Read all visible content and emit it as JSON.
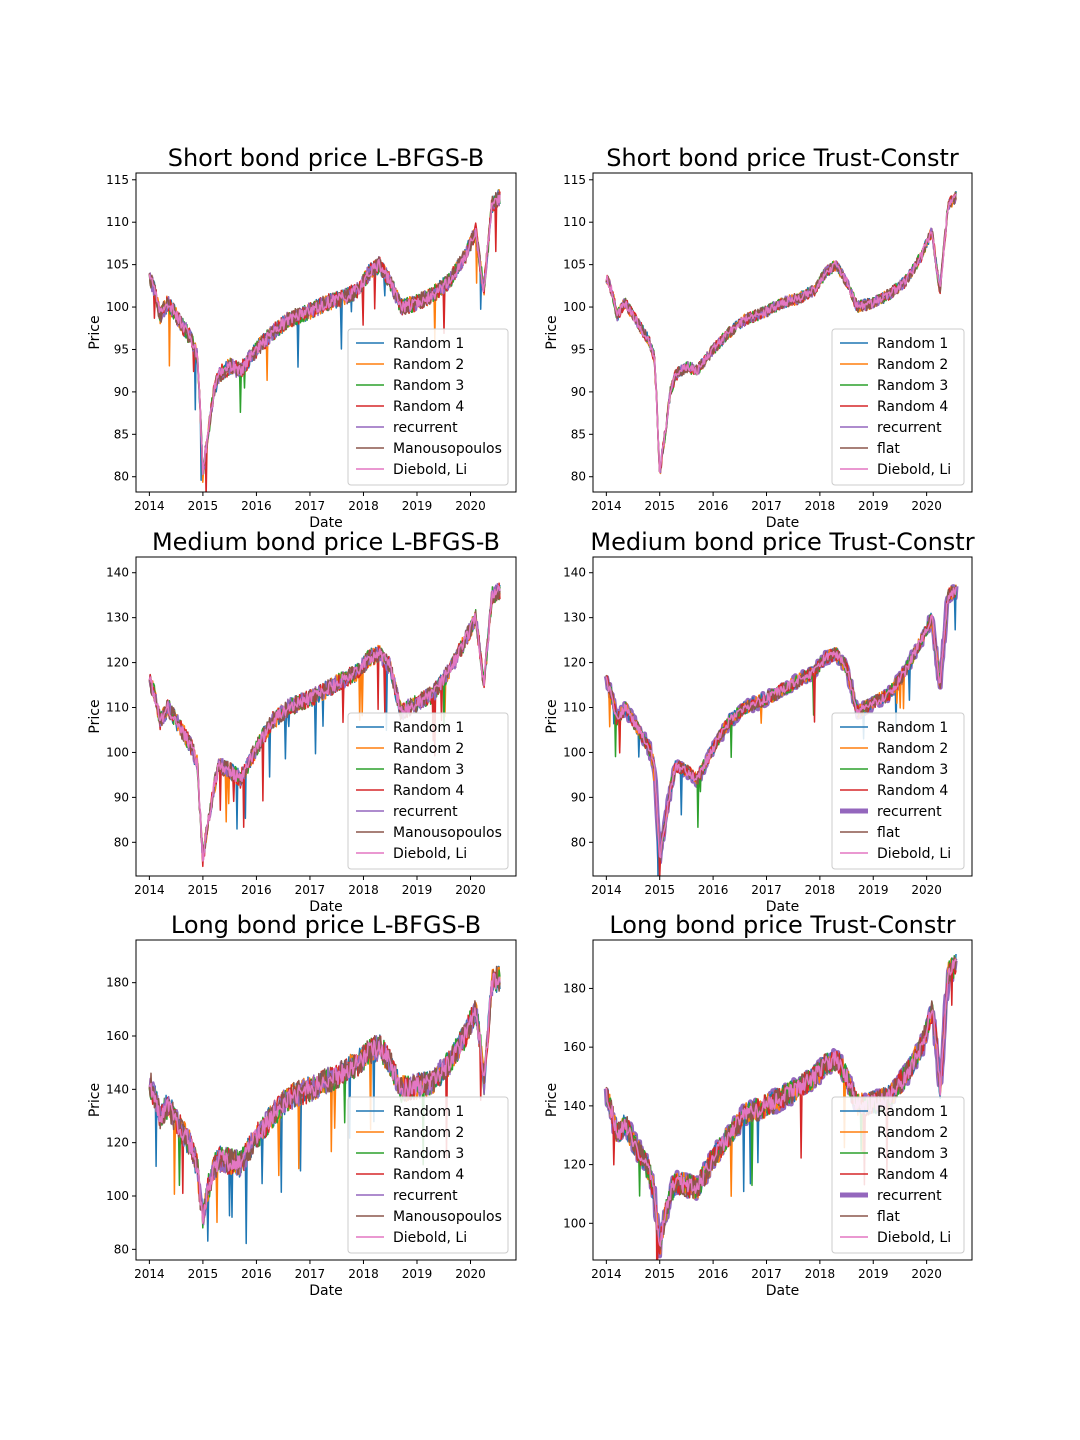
{
  "figure": {
    "legend_placement": "lower-right",
    "colors": {
      "Random 1": "#1f77b4",
      "Random 2": "#ff7f0e",
      "Random 3": "#2ca02c",
      "Random 4": "#d62728",
      "recurrent": "#9467bd",
      "Manousopoulos": "#8c564b",
      "flat": "#8c564b",
      "Diebold, Li": "#e377c2"
    }
  },
  "chart_data": [
    {
      "type": "line",
      "title": "Short bond price L-BFGS-B",
      "xlabel": "Date",
      "ylabel": "Price",
      "xlim": [
        2013.75,
        2020.85
      ],
      "ylim": [
        78.2,
        115.8
      ],
      "xticks": [
        "2014",
        "2015",
        "2016",
        "2017",
        "2018",
        "2019",
        "2020"
      ],
      "yticks": [
        "80",
        "85",
        "90",
        "95",
        "100",
        "105",
        "110",
        "115"
      ],
      "legend": [
        "Random 1",
        "Random 2",
        "Random 3",
        "Random 4",
        "recurrent",
        "Manousopoulos",
        "Diebold, Li"
      ],
      "grid": false,
      "x": [
        2014.0,
        2014.1,
        2014.2,
        2014.35,
        2014.5,
        2014.65,
        2014.8,
        2014.9,
        2014.95,
        2015.0,
        2015.05,
        2015.1,
        2015.2,
        2015.3,
        2015.5,
        2015.7,
        2016.0,
        2016.3,
        2016.6,
        2017.0,
        2017.3,
        2017.6,
        2017.9,
        2018.1,
        2018.3,
        2018.5,
        2018.7,
        2019.0,
        2019.3,
        2019.6,
        2019.9,
        2020.1,
        2020.2,
        2020.25,
        2020.4,
        2020.55
      ],
      "y": [
        103.5,
        102.0,
        99.0,
        100.5,
        99.0,
        97.5,
        96.0,
        94.0,
        88.0,
        80.0,
        83.0,
        85.0,
        90.0,
        92.0,
        93.0,
        92.5,
        95.0,
        97.0,
        98.5,
        99.5,
        100.5,
        101.0,
        102.0,
        104.0,
        105.0,
        103.0,
        100.0,
        100.5,
        101.5,
        103.0,
        106.0,
        109.0,
        104.0,
        102.0,
        112.0,
        113.0
      ],
      "noise": 1.0,
      "variant": "lbfgs"
    },
    {
      "type": "line",
      "title": "Short bond price Trust-Constr",
      "xlabel": "Date",
      "ylabel": "Price",
      "xlim": [
        2013.75,
        2020.85
      ],
      "ylim": [
        78.2,
        115.8
      ],
      "xticks": [
        "2014",
        "2015",
        "2016",
        "2017",
        "2018",
        "2019",
        "2020"
      ],
      "yticks": [
        "80",
        "85",
        "90",
        "95",
        "100",
        "105",
        "110",
        "115"
      ],
      "legend": [
        "Random 1",
        "Random 2",
        "Random 3",
        "Random 4",
        "recurrent",
        "flat",
        "Diebold, Li"
      ],
      "grid": false,
      "x": [
        2014.0,
        2014.1,
        2014.2,
        2014.35,
        2014.5,
        2014.65,
        2014.8,
        2014.9,
        2014.95,
        2015.0,
        2015.05,
        2015.1,
        2015.2,
        2015.3,
        2015.5,
        2015.7,
        2016.0,
        2016.3,
        2016.6,
        2017.0,
        2017.3,
        2017.6,
        2017.9,
        2018.1,
        2018.3,
        2018.5,
        2018.7,
        2019.0,
        2019.3,
        2019.6,
        2019.9,
        2020.1,
        2020.2,
        2020.25,
        2020.4,
        2020.55
      ],
      "y": [
        103.5,
        102.0,
        99.0,
        100.5,
        99.0,
        97.5,
        96.0,
        94.0,
        88.0,
        80.0,
        83.0,
        85.0,
        90.0,
        92.0,
        93.0,
        92.5,
        95.0,
        97.0,
        98.5,
        99.5,
        100.5,
        101.0,
        102.0,
        104.0,
        105.0,
        103.0,
        100.0,
        100.5,
        101.5,
        103.0,
        106.0,
        109.0,
        104.0,
        102.0,
        112.0,
        113.0
      ],
      "noise": 0.7,
      "variant": "trust_thin"
    },
    {
      "type": "line",
      "title": "Medium bond price L-BFGS-B",
      "xlabel": "Date",
      "ylabel": "Price",
      "xlim": [
        2013.75,
        2020.85
      ],
      "ylim": [
        72.5,
        143.5
      ],
      "xticks": [
        "2014",
        "2015",
        "2016",
        "2017",
        "2018",
        "2019",
        "2020"
      ],
      "yticks": [
        "80",
        "90",
        "100",
        "110",
        "120",
        "130",
        "140"
      ],
      "legend": [
        "Random 1",
        "Random 2",
        "Random 3",
        "Random 4",
        "recurrent",
        "Manousopoulos",
        "Diebold, Li"
      ],
      "grid": false,
      "x": [
        2014.0,
        2014.1,
        2014.2,
        2014.35,
        2014.5,
        2014.65,
        2014.8,
        2014.9,
        2014.95,
        2015.0,
        2015.05,
        2015.1,
        2015.2,
        2015.3,
        2015.5,
        2015.7,
        2016.0,
        2016.3,
        2016.6,
        2017.0,
        2017.3,
        2017.6,
        2017.9,
        2018.1,
        2018.3,
        2018.5,
        2018.7,
        2019.0,
        2019.3,
        2019.6,
        2019.9,
        2020.1,
        2020.2,
        2020.25,
        2020.4,
        2020.55
      ],
      "y": [
        116.0,
        113.0,
        107.0,
        110.0,
        107.0,
        104.0,
        101.0,
        97.0,
        86.0,
        76.0,
        81.0,
        84.0,
        92.0,
        97.0,
        96.0,
        94.0,
        101.0,
        107.0,
        110.0,
        112.0,
        114.0,
        116.0,
        118.0,
        121.0,
        122.0,
        119.0,
        109.0,
        111.0,
        113.0,
        118.0,
        125.0,
        130.0,
        120.0,
        115.0,
        135.0,
        136.0
      ],
      "noise": 2.0,
      "variant": "lbfgs"
    },
    {
      "type": "line",
      "title": "Medium bond price Trust-Constr",
      "xlabel": "Date",
      "ylabel": "Price",
      "xlim": [
        2013.75,
        2020.85
      ],
      "ylim": [
        72.5,
        143.5
      ],
      "xticks": [
        "2014",
        "2015",
        "2016",
        "2017",
        "2018",
        "2019",
        "2020"
      ],
      "yticks": [
        "80",
        "90",
        "100",
        "110",
        "120",
        "130",
        "140"
      ],
      "legend": [
        "Random 1",
        "Random 2",
        "Random 3",
        "Random 4",
        "recurrent",
        "flat",
        "Diebold, Li"
      ],
      "grid": false,
      "x": [
        2014.0,
        2014.1,
        2014.2,
        2014.35,
        2014.5,
        2014.65,
        2014.8,
        2014.9,
        2014.95,
        2015.0,
        2015.05,
        2015.1,
        2015.2,
        2015.3,
        2015.5,
        2015.7,
        2016.0,
        2016.3,
        2016.6,
        2017.0,
        2017.3,
        2017.6,
        2017.9,
        2018.1,
        2018.3,
        2018.5,
        2018.7,
        2019.0,
        2019.3,
        2019.6,
        2019.9,
        2020.1,
        2020.2,
        2020.25,
        2020.4,
        2020.55
      ],
      "y": [
        116.0,
        113.0,
        107.0,
        110.0,
        107.0,
        104.0,
        101.0,
        97.0,
        86.0,
        76.0,
        81.0,
        84.0,
        92.0,
        97.0,
        96.0,
        94.0,
        101.0,
        107.0,
        110.0,
        112.0,
        114.0,
        116.0,
        118.0,
        121.0,
        122.0,
        119.0,
        109.0,
        111.0,
        113.0,
        118.0,
        125.0,
        130.0,
        120.0,
        115.0,
        135.0,
        136.0
      ],
      "noise": 1.5,
      "variant": "trust_thick"
    },
    {
      "type": "line",
      "title": "Long bond price L-BFGS-B",
      "xlabel": "Date",
      "ylabel": "Price",
      "xlim": [
        2013.75,
        2020.85
      ],
      "ylim": [
        76.0,
        196.0
      ],
      "xticks": [
        "2014",
        "2015",
        "2016",
        "2017",
        "2018",
        "2019",
        "2020"
      ],
      "yticks": [
        "80",
        "100",
        "120",
        "140",
        "160",
        "180"
      ],
      "legend": [
        "Random 1",
        "Random 2",
        "Random 3",
        "Random 4",
        "recurrent",
        "Manousopoulos",
        "Diebold, Li"
      ],
      "grid": false,
      "x": [
        2014.0,
        2014.1,
        2014.2,
        2014.35,
        2014.5,
        2014.65,
        2014.8,
        2014.9,
        2014.95,
        2015.0,
        2015.05,
        2015.1,
        2015.2,
        2015.3,
        2015.5,
        2015.7,
        2016.0,
        2016.3,
        2016.6,
        2017.0,
        2017.3,
        2017.6,
        2017.9,
        2018.1,
        2018.3,
        2018.5,
        2018.7,
        2019.0,
        2019.3,
        2019.6,
        2019.9,
        2020.1,
        2020.2,
        2020.25,
        2020.4,
        2020.55
      ],
      "y": [
        143.0,
        137.0,
        130.0,
        134.0,
        128.0,
        123.0,
        118.0,
        110.0,
        100.0,
        92.0,
        97.0,
        103.0,
        110.0,
        114.0,
        113.0,
        112.0,
        122.0,
        130.0,
        137.0,
        140.0,
        143.0,
        146.0,
        150.0,
        154.0,
        156.0,
        150.0,
        140.0,
        141.0,
        143.0,
        150.0,
        160.0,
        170.0,
        155.0,
        142.0,
        180.0,
        182.0
      ],
      "noise": 5.0,
      "variant": "lbfgs"
    },
    {
      "type": "line",
      "title": "Long bond price Trust-Constr",
      "xlabel": "Date",
      "ylabel": "Price",
      "xlim": [
        2013.75,
        2020.85
      ],
      "ylim": [
        87.5,
        196.5
      ],
      "xticks": [
        "2014",
        "2015",
        "2016",
        "2017",
        "2018",
        "2019",
        "2020"
      ],
      "yticks": [
        "100",
        "120",
        "140",
        "160",
        "180"
      ],
      "legend": [
        "Random 1",
        "Random 2",
        "Random 3",
        "Random 4",
        "recurrent",
        "flat",
        "Diebold, Li"
      ],
      "grid": false,
      "x": [
        2014.0,
        2014.1,
        2014.2,
        2014.35,
        2014.5,
        2014.65,
        2014.8,
        2014.9,
        2014.95,
        2015.0,
        2015.05,
        2015.1,
        2015.2,
        2015.3,
        2015.5,
        2015.7,
        2016.0,
        2016.3,
        2016.6,
        2017.0,
        2017.3,
        2017.6,
        2017.9,
        2018.1,
        2018.3,
        2018.5,
        2018.7,
        2019.0,
        2019.3,
        2019.6,
        2019.9,
        2020.1,
        2020.2,
        2020.25,
        2020.4,
        2020.55
      ],
      "y": [
        145.0,
        138.0,
        130.0,
        134.0,
        128.0,
        123.0,
        118.0,
        110.0,
        100.0,
        92.0,
        97.0,
        103.0,
        110.0,
        114.0,
        113.0,
        112.0,
        122.0,
        130.0,
        137.0,
        140.0,
        143.0,
        146.0,
        150.0,
        154.0,
        156.0,
        150.0,
        140.0,
        141.0,
        143.0,
        150.0,
        160.0,
        172.0,
        160.0,
        145.0,
        185.0,
        188.0
      ],
      "noise": 4.0,
      "variant": "trust_thick"
    }
  ]
}
